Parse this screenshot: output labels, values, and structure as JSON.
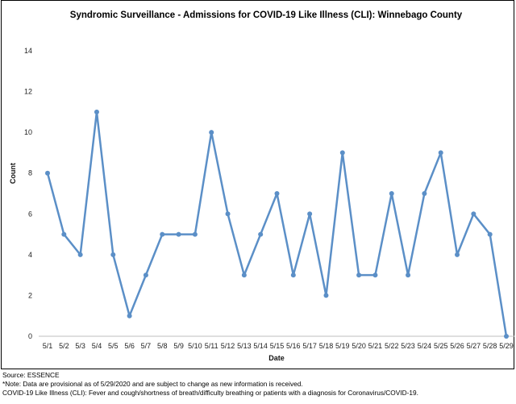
{
  "chart_data": {
    "type": "line",
    "title": "Syndromic Surveillance - Admissions for COVID-19 Like Illness (CLI): Winnebago County",
    "xlabel": "Date",
    "ylabel": "Count",
    "ylim": [
      0,
      14
    ],
    "yticks": [
      0,
      2,
      4,
      6,
      8,
      10,
      12,
      14
    ],
    "grid": false,
    "legend": "none",
    "categories": [
      "5/1",
      "5/2",
      "5/3",
      "5/4",
      "5/5",
      "5/6",
      "5/7",
      "5/8",
      "5/9",
      "5/10",
      "5/11",
      "5/12",
      "5/13",
      "5/14",
      "5/15",
      "5/16",
      "5/17",
      "5/18",
      "5/19",
      "5/20",
      "5/21",
      "5/22",
      "5/23",
      "5/24",
      "5/25",
      "5/26",
      "5/27",
      "5/28",
      "5/29"
    ],
    "series": [
      {
        "values": [
          8,
          5,
          4,
          11,
          4,
          1,
          3,
          5,
          5,
          5,
          10,
          6,
          3,
          5,
          7,
          3,
          6,
          2,
          9,
          3,
          3,
          7,
          3,
          7,
          9,
          4,
          6,
          5,
          0
        ],
        "color": "#5b8fc7"
      }
    ]
  },
  "footer": {
    "source": "Source: ESSENCE",
    "note": "*Note: Data are provisional as of 5/29/2020 and are subject to change as new information is received.",
    "definition": "COVID-19 Like Illness (CLI): Fever and cough/shortness of breath/difficulty breathing or patients with a diagnosis for Coronavirus/COVID-19."
  }
}
